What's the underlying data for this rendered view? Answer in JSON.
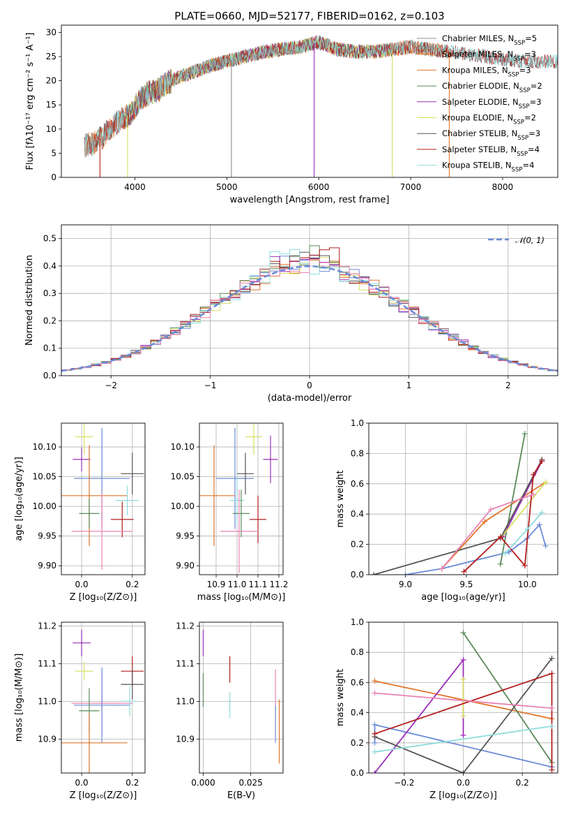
{
  "figure": {
    "colors": {
      "c0": "#6a8bd8",
      "c1": "#e0752a",
      "c2": "#5a8a5a",
      "c3": "#9a2eb8",
      "c4": "#d8e060",
      "c5": "#555555",
      "c6": "#b41e1e",
      "c7": "#90dcdc",
      "c8": "#e884b4",
      "c9": "#8c8c8c"
    }
  },
  "chart_data": [
    {
      "id": "spectrum",
      "type": "line",
      "title": "PLATE=0660, MJD=52177, FIBERID=0162, z=0.103",
      "xlabel": "wavelength [Angstrom, rest frame]",
      "ylabel": "Flux [fλ10⁻¹⁷ erg cm⁻² s⁻¹ A⁻¹]",
      "xlim": [
        3200,
        8600
      ],
      "ylim": [
        0,
        31.5
      ],
      "xticks": [
        4000,
        5000,
        6000,
        7000,
        8000
      ],
      "yticks": [
        0,
        5,
        10,
        15,
        20,
        25,
        30
      ],
      "grid": false,
      "legend_position": "upper right",
      "continuum": {
        "x": [
          3450,
          3550,
          3650,
          3750,
          3850,
          3950,
          4050,
          4150,
          4250,
          4350,
          4450,
          4600,
          4800,
          5000,
          5200,
          5400,
          5600,
          5800,
          6000,
          6200,
          6400,
          6600,
          6800,
          7000,
          7200,
          7400,
          7600,
          7800,
          8000,
          8200
        ],
        "y": [
          6.5,
          7.0,
          8.5,
          10.5,
          12.0,
          13.0,
          16.0,
          17.5,
          18.0,
          19.5,
          20.5,
          21.5,
          23.0,
          24.0,
          25.0,
          26.0,
          26.5,
          27.0,
          28.0,
          26.5,
          26.0,
          26.0,
          26.5,
          27.0,
          26.5,
          26.0,
          25.5,
          25.0,
          24.5,
          24.0
        ]
      },
      "series": [
        {
          "name": "Chabrier MILES, N_SSP=5",
          "label_main": "Chabrier MILES, N",
          "label_sub": "SSP",
          "label_tail": "=5",
          "color_key": "c9",
          "xrange": [
            3450,
            7450
          ]
        },
        {
          "name": "Salpeter MILES, N_SSP=3",
          "label_main": "Salpeter MILES, N",
          "label_sub": "SSP",
          "label_tail": "=3",
          "color_key": "c1",
          "xrange": [
            3450,
            7450
          ]
        },
        {
          "name": "Kroupa MILES, N_SSP=3",
          "label_main": "Kroupa MILES, N",
          "label_sub": "SSP",
          "label_tail": "=3",
          "color_key": "c1",
          "xrange": [
            3450,
            7450
          ]
        },
        {
          "name": "Chabrier ELODIE, N_SSP=2",
          "label_main": "Chabrier ELODIE, N",
          "label_sub": "SSP",
          "label_tail": "=2",
          "color_key": "c2",
          "xrange": [
            3900,
            6800
          ]
        },
        {
          "name": "Salpeter ELODIE, N_SSP=3",
          "label_main": "Salpeter ELODIE, N",
          "label_sub": "SSP",
          "label_tail": "=3",
          "color_key": "c3",
          "xrange": [
            3900,
            6800
          ]
        },
        {
          "name": "Kroupa ELODIE, N_SSP=2",
          "label_main": "Kroupa ELODIE, N",
          "label_sub": "SSP",
          "label_tail": "=2",
          "color_key": "c4",
          "xrange": [
            3900,
            6800
          ]
        },
        {
          "name": "Chabrier STELIB, N_SSP=3",
          "label_main": "Chabrier STELIB, N",
          "label_sub": "SSP",
          "label_tail": "=3",
          "color_key": "c5",
          "xrange": [
            3450,
            8600
          ]
        },
        {
          "name": "Salpeter STELIB, N_SSP=4",
          "label_main": "Salpeter STELIB, N",
          "label_sub": "SSP",
          "label_tail": "=4",
          "color_key": "c6",
          "xrange": [
            3450,
            8600
          ]
        },
        {
          "name": "Kroupa STELIB, N_SSP=4",
          "label_main": "Kroupa STELIB, N",
          "label_sub": "SSP",
          "label_tail": "=4",
          "color_key": "c7",
          "xrange": [
            3450,
            8600
          ]
        }
      ]
    },
    {
      "id": "residuals",
      "type": "line",
      "title": "",
      "xlabel": "(data-model)/error",
      "ylabel": "Normed distribution",
      "xlim": [
        -2.5,
        2.5
      ],
      "ylim": [
        0,
        0.55
      ],
      "xticks": [
        -2,
        -1,
        0,
        1,
        2
      ],
      "yticks": [
        0.0,
        0.1,
        0.2,
        0.3,
        0.4,
        0.5
      ],
      "grid": true,
      "legend_position": "upper right",
      "histograms": {
        "bin_width": 0.1,
        "series_colors": [
          "c0",
          "c1",
          "c2",
          "c3",
          "c4",
          "c5",
          "c6",
          "c7",
          "c8"
        ],
        "peak_heights": [
          0.44,
          0.43,
          0.52,
          0.47,
          0.46,
          0.45,
          0.48,
          0.46,
          0.45
        ]
      },
      "gaussian": {
        "label": "𝒩(0, 1)",
        "color_key": "c0",
        "mean": 0,
        "sigma": 1
      }
    },
    {
      "id": "age_vs_Z",
      "type": "scatter",
      "xlabel": "Z [log₁₀(Z/Z⊙)]",
      "ylabel": "age  [log₁₀(age/yr)]",
      "xlim": [
        -0.08,
        0.25
      ],
      "ylim": [
        9.885,
        10.14
      ],
      "xticks": [
        0.0,
        0.2
      ],
      "yticks": [
        9.9,
        9.95,
        10.0,
        10.05,
        10.1
      ],
      "grid": true,
      "points": [
        {
          "color_key": "c4",
          "x": 0.01,
          "y": 10.117,
          "xerr": 0.035,
          "yerr": 0.03
        },
        {
          "color_key": "c3",
          "x": 0.0,
          "y": 10.079,
          "xerr": 0.035,
          "yerr": 0.02
        },
        {
          "color_key": "c0",
          "x": 0.08,
          "y": 10.047,
          "xerr": 0.11,
          "yerr": 0.085
        },
        {
          "color_key": "c5",
          "x": 0.2,
          "y": 10.055,
          "xerr": 0.045,
          "yerr": 0.035
        },
        {
          "color_key": "c1",
          "x": 0.03,
          "y": 10.018,
          "xerr": 0.15,
          "yerr": 0.085
        },
        {
          "color_key": "c7",
          "x": 0.18,
          "y": 10.01,
          "xerr": 0.045,
          "yerr": 0.025
        },
        {
          "color_key": "c2",
          "x": 0.03,
          "y": 9.988,
          "xerr": 0.04,
          "yerr": 0.025
        },
        {
          "color_key": "c6",
          "x": 0.16,
          "y": 9.978,
          "xerr": 0.045,
          "yerr": 0.03
        },
        {
          "color_key": "c8",
          "x": 0.08,
          "y": 9.958,
          "xerr": 0.12,
          "yerr": 0.065
        }
      ]
    },
    {
      "id": "age_vs_mass",
      "type": "scatter",
      "xlabel": "mass [log₁₀(M/M⊙)]",
      "ylabel": "",
      "xlim": [
        10.82,
        11.22
      ],
      "ylim": [
        9.885,
        10.14
      ],
      "xticks": [
        10.9,
        11.0,
        11.1,
        11.2
      ],
      "yticks": [
        9.9,
        9.95,
        10.0,
        10.05,
        10.1
      ],
      "grid": true,
      "points": [
        {
          "color_key": "c4",
          "x": 11.08,
          "y": 10.117,
          "xerr": 0.04,
          "yerr": 0.03
        },
        {
          "color_key": "c3",
          "x": 11.16,
          "y": 10.079,
          "xerr": 0.035,
          "yerr": 0.04
        },
        {
          "color_key": "c0",
          "x": 10.99,
          "y": 10.047,
          "xerr": 0.09,
          "yerr": 0.085
        },
        {
          "color_key": "c5",
          "x": 11.04,
          "y": 10.055,
          "xerr": 0.04,
          "yerr": 0.035
        },
        {
          "color_key": "c1",
          "x": 10.89,
          "y": 10.018,
          "xerr": 0.1,
          "yerr": 0.085
        },
        {
          "color_key": "c7",
          "x": 11.0,
          "y": 10.01,
          "xerr": 0.035,
          "yerr": 0.04
        },
        {
          "color_key": "c2",
          "x": 11.02,
          "y": 9.988,
          "xerr": 0.04,
          "yerr": 0.04
        },
        {
          "color_key": "c6",
          "x": 11.1,
          "y": 9.978,
          "xerr": 0.04,
          "yerr": 0.04
        },
        {
          "color_key": "c8",
          "x": 11.01,
          "y": 9.958,
          "xerr": 0.09,
          "yerr": 0.07
        }
      ]
    },
    {
      "id": "weight_vs_age",
      "type": "line",
      "xlabel": "age  [log₁₀(age/yr)]",
      "ylabel": "mass weight",
      "xlim": [
        8.7,
        10.25
      ],
      "ylim": [
        0,
        1.0
      ],
      "xticks": [
        9.0,
        9.5,
        10.0
      ],
      "yticks": [
        0.0,
        0.2,
        0.4,
        0.6,
        0.8,
        1.0
      ],
      "grid": true,
      "series": [
        {
          "color_key": "c0",
          "points": [
            [
              9.0,
              0.0
            ],
            [
              9.3,
              0.04
            ],
            [
              9.85,
              0.15
            ],
            [
              10.0,
              0.24
            ],
            [
              10.1,
              0.33
            ],
            [
              10.15,
              0.19
            ]
          ]
        },
        {
          "color_key": "c1",
          "points": [
            [
              9.3,
              0.04
            ],
            [
              9.65,
              0.35
            ],
            [
              10.15,
              0.61
            ]
          ]
        },
        {
          "color_key": "c2",
          "points": [
            [
              9.78,
              0.07
            ],
            [
              9.98,
              0.93
            ]
          ]
        },
        {
          "color_key": "c3",
          "points": [
            [
              9.8,
              0.25
            ],
            [
              10.12,
              0.75
            ]
          ]
        },
        {
          "color_key": "c4",
          "points": [
            [
              9.78,
              0.24
            ],
            [
              10.15,
              0.61
            ]
          ]
        },
        {
          "color_key": "c5",
          "points": [
            [
              8.74,
              0.0
            ],
            [
              9.78,
              0.24
            ],
            [
              10.12,
              0.76
            ]
          ]
        },
        {
          "color_key": "c6",
          "points": [
            [
              9.48,
              0.02
            ],
            [
              9.78,
              0.25
            ],
            [
              9.98,
              0.06
            ],
            [
              10.05,
              0.66
            ],
            [
              10.12,
              0.75
            ]
          ]
        },
        {
          "color_key": "c7",
          "points": [
            [
              9.82,
              0.14
            ],
            [
              10.0,
              0.3
            ],
            [
              10.12,
              0.41
            ]
          ]
        },
        {
          "color_key": "c8",
          "points": [
            [
              9.3,
              0.04
            ],
            [
              9.7,
              0.43
            ],
            [
              10.05,
              0.53
            ]
          ]
        }
      ]
    },
    {
      "id": "mass_vs_Z",
      "type": "scatter",
      "xlabel": "Z [log₁₀(Z/Z⊙)]",
      "ylabel": "mass [log₁₀(M/M⊙)]",
      "xlim": [
        -0.08,
        0.25
      ],
      "ylim": [
        10.81,
        11.21
      ],
      "xticks": [
        0.0,
        0.2
      ],
      "yticks": [
        10.9,
        11.0,
        11.1,
        11.2
      ],
      "grid": true,
      "points": [
        {
          "color_key": "c3",
          "x": 0.0,
          "y": 11.155,
          "xerr": 0.035,
          "yerr": 0.035
        },
        {
          "color_key": "c6",
          "x": 0.2,
          "y": 11.08,
          "xerr": 0.045,
          "yerr": 0.04
        },
        {
          "color_key": "c4",
          "x": 0.01,
          "y": 11.08,
          "xerr": 0.035,
          "yerr": 0.025
        },
        {
          "color_key": "c5",
          "x": 0.2,
          "y": 11.045,
          "xerr": 0.045,
          "yerr": 0.04
        },
        {
          "color_key": "c8",
          "x": 0.08,
          "y": 10.995,
          "xerr": 0.12,
          "yerr": 0.08
        },
        {
          "color_key": "c7",
          "x": 0.19,
          "y": 11.0,
          "xerr": 0.03,
          "yerr": 0.04
        },
        {
          "color_key": "c0",
          "x": 0.08,
          "y": 10.99,
          "xerr": 0.11,
          "yerr": 0.1
        },
        {
          "color_key": "c2",
          "x": 0.03,
          "y": 10.975,
          "xerr": 0.04,
          "yerr": 0.06
        },
        {
          "color_key": "c1",
          "x": 0.03,
          "y": 10.89,
          "xerr": 0.15,
          "yerr": 0.08
        }
      ]
    },
    {
      "id": "mass_vs_ebv",
      "type": "scatter",
      "xlabel": "E(B-V)",
      "ylabel": "",
      "xlim": [
        -0.002,
        0.042
      ],
      "ylim": [
        10.81,
        11.21
      ],
      "xticks": [
        0.0,
        0.025
      ],
      "yticks": [
        10.9,
        11.0,
        11.1,
        11.2
      ],
      "grid": true,
      "points": [
        {
          "color_key": "c3",
          "x": 0.0,
          "y": 11.155,
          "yerr": 0.035
        },
        {
          "color_key": "c6",
          "x": 0.014,
          "y": 11.085,
          "yerr": 0.035
        },
        {
          "color_key": "c2",
          "x": 0.0,
          "y": 11.03,
          "yerr": 0.045
        },
        {
          "color_key": "c7",
          "x": 0.014,
          "y": 10.99,
          "yerr": 0.035
        },
        {
          "color_key": "c8",
          "x": 0.038,
          "y": 11.025,
          "yerr": 0.06
        },
        {
          "color_key": "c0",
          "x": 0.038,
          "y": 10.94,
          "yerr": 0.05
        },
        {
          "color_key": "c1",
          "x": 0.04,
          "y": 10.92,
          "yerr": 0.085
        }
      ]
    },
    {
      "id": "weight_vs_Z",
      "type": "line",
      "xlabel": "Z [log₁₀(Z/Z⊙)]",
      "ylabel": "mass weight",
      "xlim": [
        -0.32,
        0.32
      ],
      "ylim": [
        0,
        1.0
      ],
      "xticks": [
        -0.2,
        0.0,
        0.2
      ],
      "yticks": [
        0.0,
        0.2,
        0.4,
        0.6,
        0.8,
        1.0
      ],
      "grid": true,
      "series": [
        {
          "color_key": "c0",
          "points": [
            [
              -0.3,
              0.2
            ],
            [
              -0.3,
              0.32
            ],
            [
              0.3,
              0.04
            ]
          ]
        },
        {
          "color_key": "c1",
          "points": [
            [
              -0.3,
              0.61
            ],
            [
              0.3,
              0.36
            ]
          ]
        },
        {
          "color_key": "c2",
          "points": [
            [
              0.0,
              0.93
            ],
            [
              0.3,
              0.07
            ]
          ]
        },
        {
          "color_key": "c3",
          "points": [
            [
              -0.3,
              0.0
            ],
            [
              0.0,
              0.75
            ],
            [
              0.0,
              0.25
            ]
          ]
        },
        {
          "color_key": "c4",
          "points": [
            [
              0.0,
              0.62
            ],
            [
              0.0,
              0.38
            ]
          ]
        },
        {
          "color_key": "c5",
          "points": [
            [
              -0.3,
              0.24
            ],
            [
              0.0,
              0.0
            ],
            [
              0.3,
              0.76
            ]
          ]
        },
        {
          "color_key": "c6",
          "points": [
            [
              -0.3,
              0.26
            ],
            [
              0.3,
              0.66
            ],
            [
              0.3,
              0.02
            ]
          ]
        },
        {
          "color_key": "c7",
          "points": [
            [
              -0.3,
              0.14
            ],
            [
              0.3,
              0.31
            ]
          ]
        },
        {
          "color_key": "c8",
          "points": [
            [
              -0.3,
              0.53
            ],
            [
              0.3,
              0.43
            ]
          ]
        }
      ]
    }
  ]
}
